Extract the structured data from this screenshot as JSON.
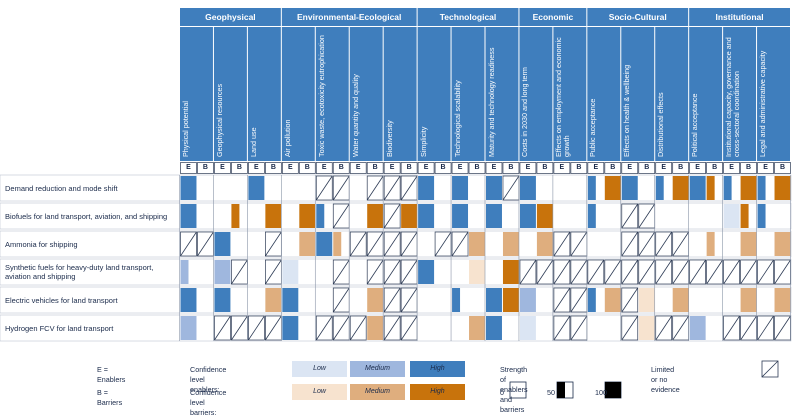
{
  "chart_data": {
    "type": "table",
    "categories": [
      {
        "name": "Geophysical",
        "span": 3
      },
      {
        "name": "Environmental-Ecological",
        "span": 4
      },
      {
        "name": "Technological",
        "span": 3
      },
      {
        "name": "Economic",
        "span": 2
      },
      {
        "name": "Socio-Cultural",
        "span": 3
      },
      {
        "name": "Institutional",
        "span": 3
      }
    ],
    "columns": [
      "Physical potential",
      "Geophysical resources",
      "Land use",
      "Air pollution",
      "Toxic waste, ecotoxicity eutrophication",
      "Water quantity and quality",
      "Biodiversity",
      "Simplicity",
      "Technological scalability",
      "Maturity and technology readiness",
      "Costs in 2030 and long term",
      "Effects on employment and economic growth",
      "Public acceptance",
      "Effects on health & wellbeing",
      "Distributional effects",
      "Political acceptance",
      "Institutional capacity, governance and cross-sectoral coordination",
      "Legal and administrative capacity"
    ],
    "sub_columns": [
      "E",
      "B"
    ],
    "options": [
      "Demand reduction and mode shift",
      "Biofuels for land transport, aviation, and shipping",
      "Ammonia for shipping",
      "Synthetic fuels for heavy-duty land transport, aviation and shipping",
      "Electric vehicles for land transport",
      "Hydrogen FCV for land transport"
    ],
    "cells": [
      [
        [
          "H",
          100
        ],
        [
          "-",
          0
        ],
        [
          "-",
          0
        ],
        [
          "-",
          0
        ],
        [
          "H",
          100
        ],
        [
          "-",
          0
        ],
        [
          "-",
          0
        ],
        [
          "-",
          0
        ],
        [
          "X",
          0
        ],
        [
          "X",
          0
        ],
        [
          "-",
          0
        ],
        [
          "X",
          0
        ],
        [
          "X",
          0
        ],
        [
          "X",
          0
        ],
        [
          "H",
          100
        ],
        [
          "-",
          0
        ],
        [
          "H",
          100
        ],
        [
          "-",
          0
        ],
        [
          "H",
          100
        ],
        [
          "X",
          0
        ],
        [
          "H",
          100
        ],
        [
          "-",
          0
        ],
        [
          "-",
          0
        ],
        [
          "-",
          0
        ],
        [
          "H",
          50
        ],
        [
          "H",
          100
        ],
        [
          "H",
          100
        ],
        [
          "-",
          0
        ],
        [
          "H",
          50
        ],
        [
          "H",
          100
        ],
        [
          "H",
          100
        ],
        [
          "H",
          50
        ],
        [
          "H",
          50
        ],
        [
          "H",
          100
        ],
        [
          "H",
          50
        ],
        [
          "H",
          100
        ]
      ],
      [
        [
          "H",
          100
        ],
        [
          "-",
          0
        ],
        [
          "-",
          0
        ],
        [
          "H",
          50
        ],
        [
          "-",
          0
        ],
        [
          "H",
          100
        ],
        [
          "-",
          0
        ],
        [
          "H",
          100
        ],
        [
          "H",
          50
        ],
        [
          "X",
          0
        ],
        [
          "-",
          0
        ],
        [
          "H",
          100
        ],
        [
          "X",
          0
        ],
        [
          "H",
          100
        ],
        [
          "H",
          100
        ],
        [
          "-",
          0
        ],
        [
          "H",
          100
        ],
        [
          "-",
          0
        ],
        [
          "H",
          100
        ],
        [
          "-",
          0
        ],
        [
          "H",
          100
        ],
        [
          "H",
          100
        ],
        [
          "-",
          0
        ],
        [
          "-",
          0
        ],
        [
          "H",
          50
        ],
        [
          "-",
          0
        ],
        [
          "X",
          0
        ],
        [
          "X",
          0
        ],
        [
          "-",
          0
        ],
        [
          "-",
          0
        ],
        [
          "-",
          0
        ],
        [
          "-",
          0
        ],
        [
          "L",
          100
        ],
        [
          "H",
          50
        ],
        [
          "H",
          50
        ],
        [
          "-",
          0
        ]
      ],
      [
        [
          "X",
          0
        ],
        [
          "X",
          0
        ],
        [
          "H",
          100
        ],
        [
          "-",
          0
        ],
        [
          "-",
          0
        ],
        [
          "X",
          0
        ],
        [
          "-",
          0
        ],
        [
          "M",
          100
        ],
        [
          "H",
          100
        ],
        [
          "M",
          50
        ],
        [
          "X",
          0
        ],
        [
          "X",
          0
        ],
        [
          "X",
          0
        ],
        [
          "X",
          0
        ],
        [
          "-",
          0
        ],
        [
          "X",
          0
        ],
        [
          "X",
          0
        ],
        [
          "M",
          100
        ],
        [
          "-",
          0
        ],
        [
          "M",
          100
        ],
        [
          "-",
          0
        ],
        [
          "M",
          100
        ],
        [
          "X",
          0
        ],
        [
          "X",
          0
        ],
        [
          "-",
          0
        ],
        [
          "-",
          0
        ],
        [
          "X",
          0
        ],
        [
          "X",
          0
        ],
        [
          "X",
          0
        ],
        [
          "X",
          0
        ],
        [
          "-",
          0
        ],
        [
          "M",
          50
        ],
        [
          "-",
          0
        ],
        [
          "M",
          100
        ],
        [
          "-",
          0
        ],
        [
          "M",
          100
        ]
      ],
      [
        [
          "M",
          50
        ],
        [
          "-",
          0
        ],
        [
          "M",
          100
        ],
        [
          "X",
          0
        ],
        [
          "-",
          0
        ],
        [
          "X",
          0
        ],
        [
          "L",
          100
        ],
        [
          "-",
          0
        ],
        [
          "-",
          0
        ],
        [
          "X",
          0
        ],
        [
          "-",
          0
        ],
        [
          "X",
          0
        ],
        [
          "X",
          0
        ],
        [
          "X",
          0
        ],
        [
          "H",
          100
        ],
        [
          "-",
          0
        ],
        [
          "-",
          0
        ],
        [
          "L",
          100
        ],
        [
          "-",
          0
        ],
        [
          "H",
          100
        ],
        [
          "X",
          0
        ],
        [
          "X",
          0
        ],
        [
          "X",
          0
        ],
        [
          "X",
          0
        ],
        [
          "X",
          0
        ],
        [
          "X",
          0
        ],
        [
          "X",
          0
        ],
        [
          "X",
          0
        ],
        [
          "X",
          0
        ],
        [
          "X",
          0
        ],
        [
          "X",
          0
        ],
        [
          "X",
          0
        ],
        [
          "X",
          0
        ],
        [
          "X",
          0
        ],
        [
          "X",
          0
        ],
        [
          "X",
          0
        ]
      ],
      [
        [
          "H",
          100
        ],
        [
          "-",
          0
        ],
        [
          "H",
          100
        ],
        [
          "-",
          0
        ],
        [
          "-",
          0
        ],
        [
          "M",
          100
        ],
        [
          "H",
          100
        ],
        [
          "-",
          0
        ],
        [
          "-",
          0
        ],
        [
          "X",
          0
        ],
        [
          "-",
          0
        ],
        [
          "M",
          100
        ],
        [
          "X",
          0
        ],
        [
          "X",
          0
        ],
        [
          "-",
          0
        ],
        [
          "-",
          0
        ],
        [
          "H",
          50
        ],
        [
          "-",
          0
        ],
        [
          "H",
          100
        ],
        [
          "H",
          100
        ],
        [
          "M",
          100
        ],
        [
          "-",
          0
        ],
        [
          "X",
          0
        ],
        [
          "X",
          0
        ],
        [
          "H",
          50
        ],
        [
          "M",
          100
        ],
        [
          "X",
          0
        ],
        [
          "L",
          100
        ],
        [
          "-",
          0
        ],
        [
          "M",
          100
        ],
        [
          "-",
          0
        ],
        [
          "-",
          0
        ],
        [
          "-",
          0
        ],
        [
          "M",
          100
        ],
        [
          "-",
          0
        ],
        [
          "M",
          100
        ]
      ],
      [
        [
          "M",
          100
        ],
        [
          "-",
          0
        ],
        [
          "X",
          0
        ],
        [
          "X",
          0
        ],
        [
          "X",
          0
        ],
        [
          "X",
          0
        ],
        [
          "H",
          100
        ],
        [
          "-",
          0
        ],
        [
          "X",
          0
        ],
        [
          "X",
          0
        ],
        [
          "X",
          0
        ],
        [
          "M",
          100
        ],
        [
          "X",
          0
        ],
        [
          "X",
          0
        ],
        [
          "-",
          0
        ],
        [
          "-",
          0
        ],
        [
          "-",
          0
        ],
        [
          "M",
          100
        ],
        [
          "H",
          100
        ],
        [
          "-",
          0
        ],
        [
          "L",
          100
        ],
        [
          "-",
          0
        ],
        [
          "X",
          0
        ],
        [
          "X",
          0
        ],
        [
          "-",
          0
        ],
        [
          "-",
          0
        ],
        [
          "X",
          0
        ],
        [
          "L",
          100
        ],
        [
          "X",
          0
        ],
        [
          "X",
          0
        ],
        [
          "M",
          100
        ],
        [
          "-",
          0
        ],
        [
          "X",
          0
        ],
        [
          "X",
          0
        ],
        [
          "X",
          0
        ],
        [
          "X",
          0
        ]
      ]
    ],
    "legend": {
      "enablers_key": "E = Enablers",
      "barriers_key": "B = Barriers",
      "confidence_enablers": "Confidence level enablers:",
      "confidence_barriers": "Confidence level barriers:",
      "levels": [
        "Low",
        "Medium",
        "High"
      ],
      "strength_title": "Strength of enablers and barriers",
      "strength_values": [
        "0",
        "50",
        "100"
      ],
      "no_evidence": "Limited or no evidence"
    },
    "colors": {
      "header": "#3f7ebd",
      "enabler_low": "#dbe5f3",
      "enabler_medium": "#9fb7de",
      "enabler_high": "#3f7ebd",
      "barrier_low": "#f7e3cf",
      "barrier_medium": "#dfae7e",
      "barrier_high": "#c8730c",
      "grid": "#2d3b55"
    }
  }
}
